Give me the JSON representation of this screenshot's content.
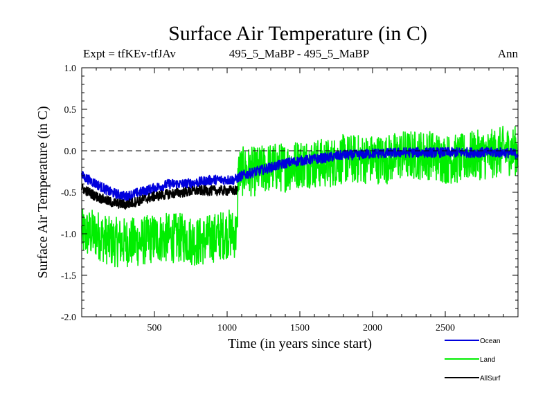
{
  "chart_data": {
    "type": "line",
    "title": "Surface Air Temperature (in C)",
    "left_subtitle": "Expt = tfKEv-tfJAv",
    "center_subtitle": "495_5_MaBP - 495_5_MaBP",
    "right_subtitle": "Ann",
    "xlabel": "Time (in years since start)",
    "ylabel": "Surface Air Temperature (in C)",
    "xlim": [
      0,
      3000
    ],
    "ylim": [
      -2.0,
      1.0
    ],
    "xticks": [
      500,
      1000,
      1500,
      2000,
      2500
    ],
    "yticks": [
      -2.0,
      -1.5,
      -1.0,
      -0.5,
      0.0,
      0.5,
      1.0
    ],
    "ytick_labels": [
      "-2.0",
      "-1.5",
      "-1.0",
      "-0.5",
      "0.0",
      "0.5",
      "1.0"
    ],
    "reference_line": {
      "y": 0.0,
      "style": "dashed"
    },
    "legend_position": "bottom-right",
    "series": [
      {
        "name": "Land",
        "color": "#00ee00",
        "x": [
          0,
          100,
          200,
          300,
          400,
          500,
          600,
          700,
          800,
          900,
          1000,
          1070,
          1075,
          1100,
          1200,
          1300,
          1400,
          1500,
          1600,
          1700,
          1800,
          1900,
          2000,
          2100,
          2200,
          2300,
          2400,
          2500,
          2600,
          2700,
          2800,
          2900,
          3000
        ],
        "mean": [
          -1.0,
          -1.0,
          -1.1,
          -1.1,
          -1.1,
          -1.05,
          -1.05,
          -1.05,
          -1.1,
          -1.05,
          -1.0,
          -1.0,
          -0.25,
          -0.25,
          -0.25,
          -0.2,
          -0.2,
          -0.15,
          -0.15,
          -0.15,
          -0.1,
          -0.1,
          -0.1,
          -0.1,
          -0.05,
          -0.05,
          -0.05,
          -0.1,
          -0.1,
          -0.05,
          -0.05,
          0.0,
          0.0
        ],
        "amplitude": 0.3
      },
      {
        "name": "Ocean",
        "color": "#0000dd",
        "x": [
          0,
          100,
          200,
          300,
          400,
          500,
          600,
          700,
          800,
          900,
          1000,
          1050,
          1100,
          1200,
          1300,
          1400,
          1500,
          1600,
          1700,
          1800,
          1900,
          2000,
          2100,
          2200,
          2300,
          2400,
          2500,
          2600,
          2700,
          2800,
          2900,
          3000
        ],
        "mean": [
          -0.3,
          -0.4,
          -0.5,
          -0.55,
          -0.5,
          -0.45,
          -0.4,
          -0.4,
          -0.38,
          -0.35,
          -0.35,
          -0.35,
          -0.3,
          -0.25,
          -0.2,
          -0.15,
          -0.12,
          -0.1,
          -0.08,
          -0.05,
          -0.05,
          -0.03,
          -0.03,
          -0.02,
          -0.02,
          -0.02,
          -0.02,
          -0.02,
          -0.02,
          -0.02,
          -0.02,
          -0.04
        ],
        "amplitude": 0.06
      },
      {
        "name": "AllSurf",
        "color": "#000000",
        "x": [
          0,
          100,
          200,
          300,
          400,
          500,
          600,
          700,
          800,
          900,
          1000,
          1070
        ],
        "mean": [
          -0.45,
          -0.55,
          -0.62,
          -0.65,
          -0.6,
          -0.55,
          -0.52,
          -0.5,
          -0.48,
          -0.48,
          -0.48,
          -0.48
        ],
        "amplitude": 0.06
      }
    ]
  }
}
